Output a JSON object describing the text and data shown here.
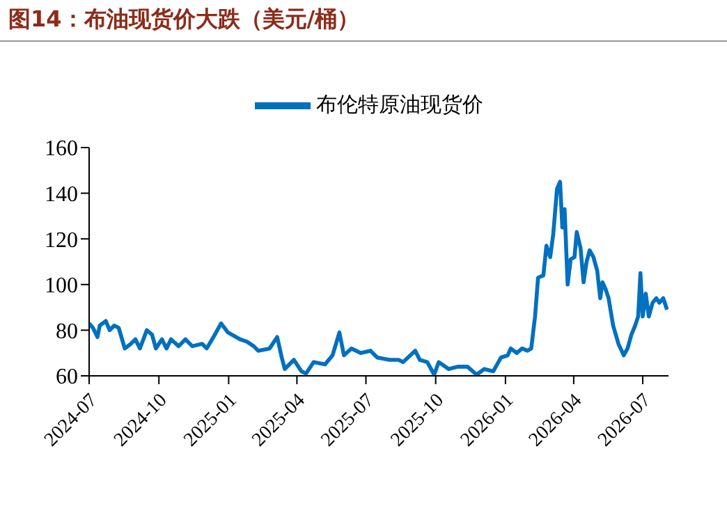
{
  "chart_data": {
    "type": "line",
    "title": "图14：布油现货价大跌（美元/桶）",
    "x": [
      "2024-07-01",
      "2024-07-06",
      "2024-07-12",
      "2024-07-15",
      "2024-07-23",
      "2024-07-28",
      "2024-08-03",
      "2024-08-09",
      "2024-08-17",
      "2024-08-25",
      "2024-08-31",
      "2024-09-06",
      "2024-09-15",
      "2024-09-22",
      "2024-09-27",
      "2024-10-05",
      "2024-10-11",
      "2024-10-17",
      "2024-10-27",
      "2024-11-05",
      "2024-11-14",
      "2024-11-27",
      "2024-12-03",
      "2024-12-12",
      "2024-12-22",
      "2024-12-31",
      "2025-01-16",
      "2025-01-25",
      "2025-02-03",
      "2025-02-09",
      "2025-02-24",
      "2025-03-06",
      "2025-03-12",
      "2025-03-16",
      "2025-03-28",
      "2025-04-07",
      "2025-04-13",
      "2025-04-23",
      "2025-05-08",
      "2025-05-18",
      "2025-05-27",
      "2025-06-02",
      "2025-06-12",
      "2025-06-24",
      "2025-07-07",
      "2025-07-16",
      "2025-08-01",
      "2025-08-13",
      "2025-08-19",
      "2025-09-04",
      "2025-09-10",
      "2025-09-20",
      "2025-09-29",
      "2025-10-05",
      "2025-10-18",
      "2025-10-30",
      "2025-11-12",
      "2025-11-24",
      "2025-12-04",
      "2025-12-16",
      "2025-12-26",
      "2026-01-04",
      "2026-01-08",
      "2026-01-16",
      "2026-01-23",
      "2026-01-30",
      "2026-02-04",
      "2026-02-09",
      "2026-02-13",
      "2026-02-20",
      "2026-02-24",
      "2026-03-01",
      "2026-03-05",
      "2026-03-10",
      "2026-03-14",
      "2026-03-17",
      "2026-03-20",
      "2026-03-24",
      "2026-03-28",
      "2026-04-02",
      "2026-04-05",
      "2026-04-10",
      "2026-04-14",
      "2026-04-18",
      "2026-04-22",
      "2026-04-27",
      "2026-05-02",
      "2026-05-06",
      "2026-05-09",
      "2026-05-13",
      "2026-05-17",
      "2026-05-23",
      "2026-05-30",
      "2026-06-06",
      "2026-06-11",
      "2026-06-16",
      "2026-06-21",
      "2026-06-25",
      "2026-06-28",
      "2026-07-01",
      "2026-07-05",
      "2026-07-09",
      "2026-07-14",
      "2026-07-19",
      "2026-07-23",
      "2026-07-28",
      "2026-08-02"
    ],
    "series": [
      {
        "name": "布伦特原油现货价",
        "color": "#0070c0",
        "values": [
          83,
          81,
          77,
          82,
          84,
          80,
          82,
          81,
          72,
          74,
          76,
          72,
          80,
          78,
          72,
          76,
          72,
          76,
          73,
          76,
          73,
          74,
          72,
          77,
          83,
          79,
          76,
          75,
          73,
          71,
          72,
          77,
          68,
          63,
          67,
          62,
          61,
          66,
          65,
          69,
          79,
          69,
          72,
          70,
          71,
          68,
          67,
          67,
          66,
          71,
          67,
          66,
          60.5,
          66,
          63,
          64,
          64,
          60.5,
          63,
          62,
          68,
          69,
          72,
          70,
          72,
          71,
          72,
          86,
          103,
          104,
          117,
          112,
          122,
          142,
          145,
          125,
          133,
          100,
          111,
          112,
          123,
          116,
          101,
          110,
          115,
          112,
          106,
          94,
          101,
          98,
          94,
          82,
          74,
          69,
          72,
          78,
          82,
          86,
          105,
          86,
          96,
          86,
          92,
          94,
          92,
          94,
          89
        ]
      }
    ],
    "xlim": [
      "2024-07-01",
      "2026-08-04"
    ],
    "xticks": [
      "2024-07",
      "2024-10",
      "2025-01",
      "2025-04",
      "2025-07",
      "2025-10",
      "2026-01",
      "2026-04",
      "2026-07"
    ],
    "ylim": [
      60,
      160
    ],
    "yticks": [
      60,
      80,
      100,
      120,
      140,
      160
    ],
    "grid": false,
    "legend": "top",
    "marker": "none",
    "line_style": "solid"
  }
}
